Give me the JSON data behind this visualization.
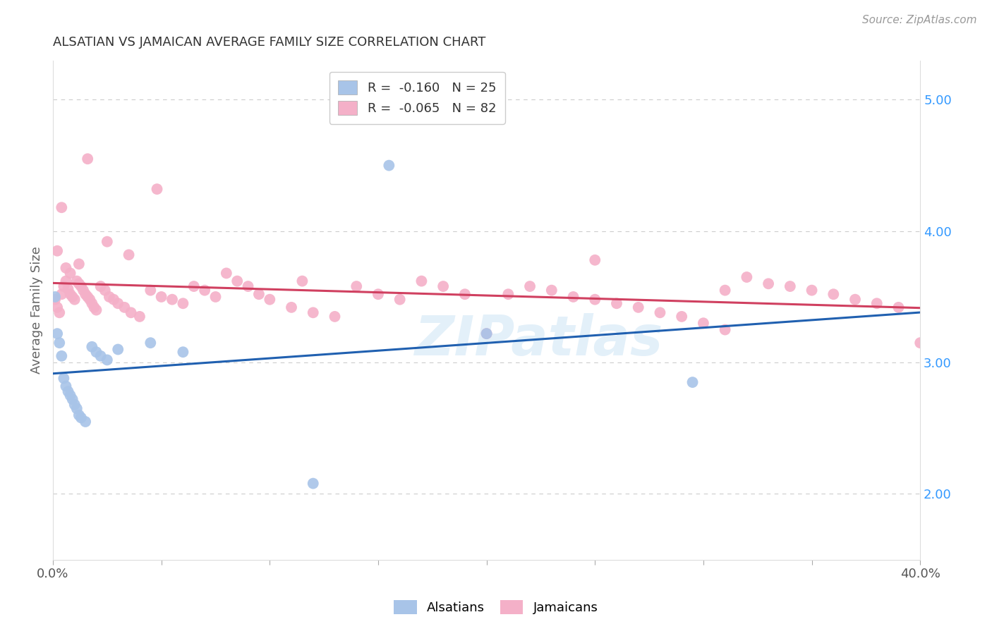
{
  "title": "ALSATIAN VS JAMAICAN AVERAGE FAMILY SIZE CORRELATION CHART",
  "source": "Source: ZipAtlas.com",
  "ylabel": "Average Family Size",
  "xlim": [
    0.0,
    0.4
  ],
  "ylim": [
    1.5,
    5.3
  ],
  "yticks_right": [
    2.0,
    3.0,
    4.0,
    5.0
  ],
  "xticks": [
    0.0,
    0.05,
    0.1,
    0.15,
    0.2,
    0.25,
    0.3,
    0.35,
    0.4
  ],
  "legend_label1": "R =  -0.160   N = 25",
  "legend_label2": "R =  -0.065   N = 82",
  "alsatian_color": "#a8c4e8",
  "jamaican_color": "#f4b0c8",
  "trendline_blue": "#2060b0",
  "trendline_pink": "#d04060",
  "background_color": "#ffffff",
  "grid_color": "#cccccc",
  "watermark": "ZIPatlas",
  "alsatian_x": [
    0.001,
    0.002,
    0.003,
    0.004,
    0.005,
    0.006,
    0.007,
    0.008,
    0.009,
    0.01,
    0.011,
    0.012,
    0.013,
    0.015,
    0.018,
    0.02,
    0.022,
    0.025,
    0.03,
    0.045,
    0.06,
    0.12,
    0.155,
    0.295,
    0.2
  ],
  "alsatian_y": [
    3.5,
    3.22,
    3.15,
    3.05,
    2.88,
    2.82,
    2.78,
    2.75,
    2.72,
    2.68,
    2.65,
    2.6,
    2.58,
    2.55,
    3.12,
    3.08,
    3.05,
    3.02,
    3.1,
    3.15,
    3.08,
    2.08,
    4.5,
    2.85,
    3.22
  ],
  "jamaican_x": [
    0.001,
    0.002,
    0.003,
    0.004,
    0.005,
    0.006,
    0.007,
    0.008,
    0.009,
    0.01,
    0.011,
    0.012,
    0.013,
    0.014,
    0.015,
    0.016,
    0.017,
    0.018,
    0.019,
    0.02,
    0.022,
    0.024,
    0.026,
    0.028,
    0.03,
    0.033,
    0.036,
    0.04,
    0.045,
    0.05,
    0.055,
    0.06,
    0.065,
    0.07,
    0.075,
    0.08,
    0.085,
    0.09,
    0.095,
    0.1,
    0.11,
    0.12,
    0.13,
    0.14,
    0.15,
    0.16,
    0.17,
    0.18,
    0.19,
    0.2,
    0.21,
    0.22,
    0.23,
    0.24,
    0.25,
    0.26,
    0.27,
    0.28,
    0.29,
    0.3,
    0.31,
    0.32,
    0.33,
    0.34,
    0.35,
    0.36,
    0.37,
    0.38,
    0.39,
    0.4,
    0.002,
    0.004,
    0.006,
    0.008,
    0.012,
    0.016,
    0.025,
    0.035,
    0.048,
    0.115,
    0.25,
    0.31
  ],
  "jamaican_y": [
    3.48,
    3.42,
    3.38,
    3.52,
    3.58,
    3.62,
    3.56,
    3.52,
    3.5,
    3.48,
    3.62,
    3.6,
    3.58,
    3.55,
    3.52,
    3.5,
    3.48,
    3.45,
    3.42,
    3.4,
    3.58,
    3.55,
    3.5,
    3.48,
    3.45,
    3.42,
    3.38,
    3.35,
    3.55,
    3.5,
    3.48,
    3.45,
    3.58,
    3.55,
    3.5,
    3.68,
    3.62,
    3.58,
    3.52,
    3.48,
    3.42,
    3.38,
    3.35,
    3.58,
    3.52,
    3.48,
    3.62,
    3.58,
    3.52,
    3.22,
    3.52,
    3.58,
    3.55,
    3.5,
    3.48,
    3.45,
    3.42,
    3.38,
    3.35,
    3.3,
    3.25,
    3.65,
    3.6,
    3.58,
    3.55,
    3.52,
    3.48,
    3.45,
    3.42,
    3.15,
    3.85,
    4.18,
    3.72,
    3.68,
    3.75,
    4.55,
    3.92,
    3.82,
    4.32,
    3.62,
    3.78,
    3.55
  ]
}
